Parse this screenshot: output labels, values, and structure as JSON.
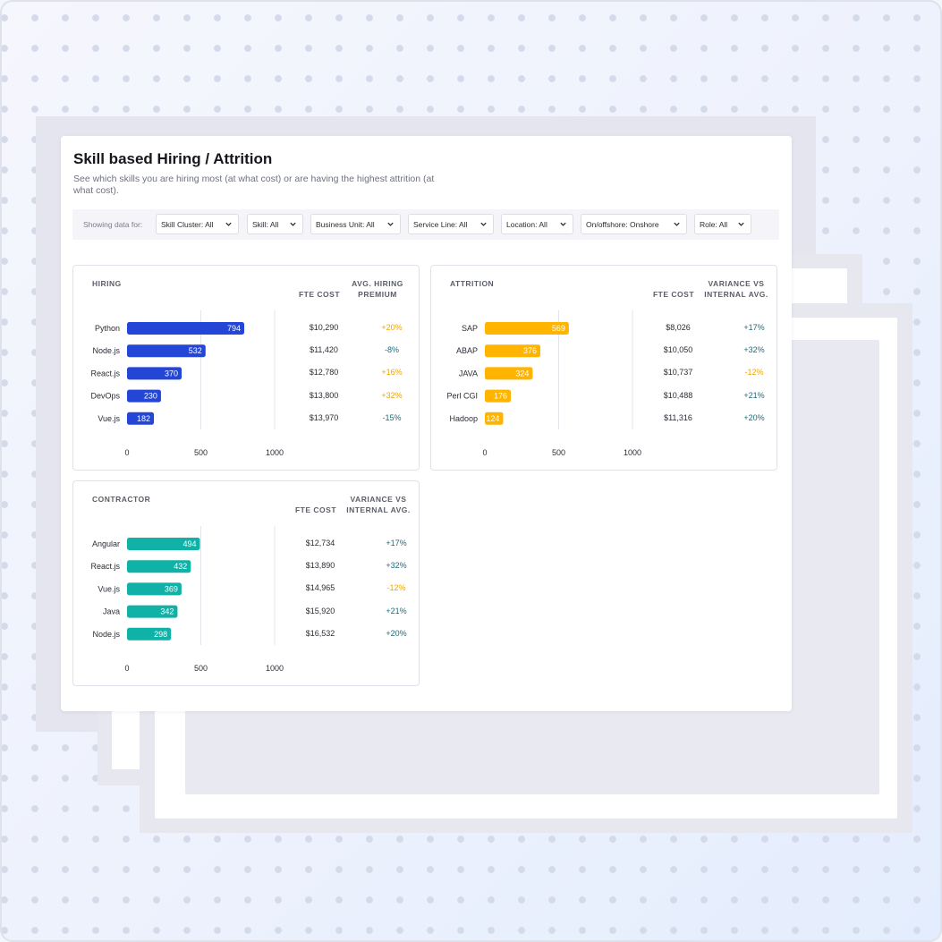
{
  "page": {
    "title": "Skill based Hiring / Attrition",
    "subtitle": "See which skills you are hiring most (at what cost) or are having the highest attrition (at what cost)."
  },
  "filters": {
    "label": "Showing data for:",
    "items": [
      {
        "label": "Skill Cluster: All"
      },
      {
        "label": "Skill: All"
      },
      {
        "label": "Business Unit: All"
      },
      {
        "label": "Service Line: All"
      },
      {
        "label": "Location: All"
      },
      {
        "label": "On/offshore: Onshore"
      },
      {
        "label": "Role: All"
      }
    ]
  },
  "colors": {
    "hiring": "#2446d6",
    "attrition": "#ffb400",
    "contractor": "#10b1a6",
    "positive": "#1f6b77",
    "warning": "#f0a500"
  },
  "panels": [
    {
      "key": "hiring",
      "title": "HIRING",
      "col1": "FTE COST",
      "col2": [
        "AVG. HIRING",
        "PREMIUM"
      ],
      "rows": [
        {
          "skill": "Python",
          "cost": "$10,290",
          "premium": "+20%",
          "tone": "warning"
        },
        {
          "skill": "Node.js",
          "cost": "$11,420",
          "premium": "-8%",
          "tone": "positive"
        },
        {
          "skill": "React.js",
          "cost": "$12,780",
          "premium": "+16%",
          "tone": "warning"
        },
        {
          "skill": "DevOps",
          "cost": "$13,800",
          "premium": "+32%",
          "tone": "warning"
        },
        {
          "skill": "Vue.js",
          "cost": "$13,970",
          "premium": "-15%",
          "tone": "positive"
        }
      ]
    },
    {
      "key": "attrition",
      "title": "ATTRITION",
      "col1": "FTE COST",
      "col2": [
        "VARIANCE VS",
        "INTERNAL AVG."
      ],
      "rows": [
        {
          "skill": "SAP",
          "cost": "$8,026",
          "premium": "+17%",
          "tone": "positive"
        },
        {
          "skill": "ABAP",
          "cost": "$10,050",
          "premium": "+32%",
          "tone": "positive"
        },
        {
          "skill": "JAVA",
          "cost": "$10,737",
          "premium": "-12%",
          "tone": "warning"
        },
        {
          "skill": "Perl CGI",
          "cost": "$10,488",
          "premium": "+21%",
          "tone": "positive"
        },
        {
          "skill": "Hadoop",
          "cost": "$11,316",
          "premium": "+20%",
          "tone": "positive"
        }
      ]
    },
    {
      "key": "contractor",
      "title": "CONTRACTOR",
      "col1": "FTE COST",
      "col2": [
        "VARIANCE VS",
        "INTERNAL AVG."
      ],
      "rows": [
        {
          "skill": "Angular",
          "cost": "$12,734",
          "premium": "+17%",
          "tone": "positive"
        },
        {
          "skill": "React.js",
          "cost": "$13,890",
          "premium": "+32%",
          "tone": "positive"
        },
        {
          "skill": "Vue.js",
          "cost": "$14,965",
          "premium": "-12%",
          "tone": "warning"
        },
        {
          "skill": "Java",
          "cost": "$15,920",
          "premium": "+21%",
          "tone": "positive"
        },
        {
          "skill": "Node.js",
          "cost": "$16,532",
          "premium": "+20%",
          "tone": "positive"
        }
      ]
    }
  ],
  "chart_data": [
    {
      "type": "bar",
      "orientation": "horizontal",
      "title": "HIRING",
      "categories": [
        "Python",
        "Node.js",
        "React.js",
        "DevOps",
        "Vue.js"
      ],
      "values": [
        794,
        532,
        370,
        230,
        182
      ],
      "xlim": [
        0,
        1000
      ],
      "xticks": [
        "0",
        "500",
        "1000"
      ],
      "grid": true
    },
    {
      "type": "bar",
      "orientation": "horizontal",
      "title": "ATTRITION",
      "categories": [
        "SAP",
        "ABAP",
        "JAVA",
        "Perl CGI",
        "Hadoop"
      ],
      "values": [
        569,
        376,
        324,
        176,
        124
      ],
      "xlim": [
        0,
        1000
      ],
      "xticks": [
        "0",
        "500",
        "1000"
      ],
      "grid": true
    },
    {
      "type": "bar",
      "orientation": "horizontal",
      "title": "CONTRACTOR",
      "categories": [
        "Angular",
        "React.js",
        "Vue.js",
        "Java",
        "Node.js"
      ],
      "values": [
        494,
        432,
        369,
        342,
        298
      ],
      "xlim": [
        0,
        1000
      ],
      "xticks": [
        "0",
        "500",
        "1000"
      ],
      "grid": true
    }
  ]
}
